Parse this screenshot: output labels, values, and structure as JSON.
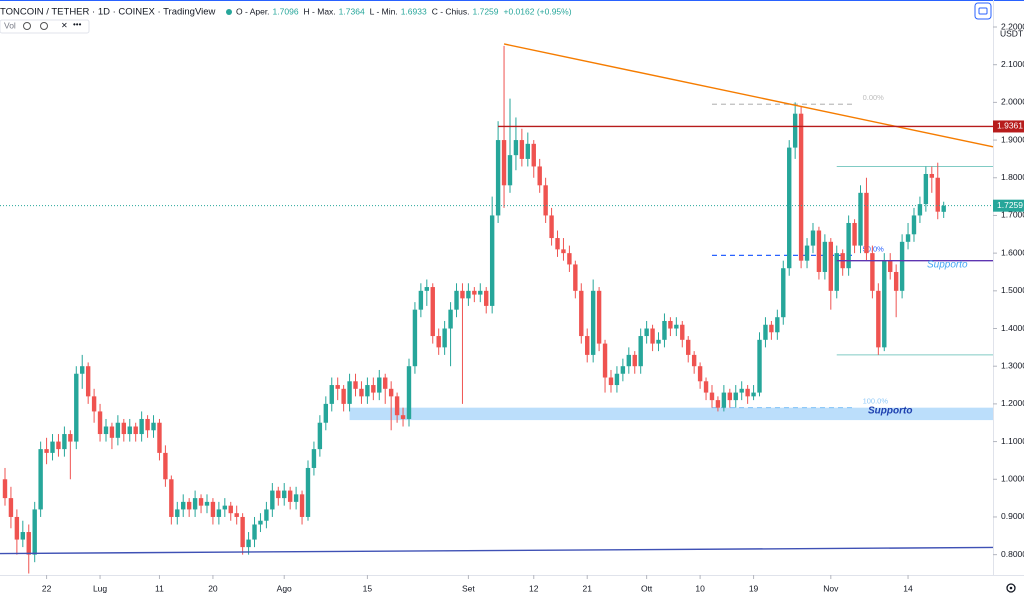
{
  "header": {
    "title": "TONCOIN / TETHER · 1D · COINEX · TradingView",
    "legend": [
      {
        "label": "O - Aper.",
        "value": "1.7096"
      },
      {
        "label": "H - Max.",
        "value": "1.7364"
      },
      {
        "label": "L - Min.",
        "value": "1.6933"
      },
      {
        "label": "C - Chius.",
        "value": "1.7259"
      }
    ],
    "change": "+0.0162 (+0.95%)",
    "volume": "Vol",
    "currency": "USDT"
  },
  "chart_data": {
    "type": "candlestick",
    "up_color": "#26a69a",
    "down_color": "#ef5350",
    "ylim": [
      0.746,
      2.2
    ],
    "xlim": [
      -0.84,
      166.3
    ],
    "yticks": [
      {
        "value": 2.2,
        "label": "2.2000"
      },
      {
        "value": 2.1,
        "label": "2.1000"
      },
      {
        "value": 2.0,
        "label": "2.0000"
      },
      {
        "value": 1.9,
        "label": "1.9000"
      },
      {
        "value": 1.8,
        "label": "1.8000"
      },
      {
        "value": 1.7,
        "label": "1.7000"
      },
      {
        "value": 1.6,
        "label": "1.6000"
      },
      {
        "value": 1.5,
        "label": "1.5000"
      },
      {
        "value": 1.4,
        "label": "1.4000"
      },
      {
        "value": 1.3,
        "label": "1.3000"
      },
      {
        "value": 1.2,
        "label": "1.2000"
      },
      {
        "value": 1.1,
        "label": "1.1000"
      },
      {
        "value": 1.0,
        "label": "1.0000"
      },
      {
        "value": 0.9,
        "label": "0.9000"
      },
      {
        "value": 0.8,
        "label": "0.8000"
      }
    ],
    "xticks": [
      {
        "value": 7,
        "label": "22"
      },
      {
        "value": 16,
        "label": "Lug"
      },
      {
        "value": 26,
        "label": "11"
      },
      {
        "value": 35,
        "label": "20"
      },
      {
        "value": 47,
        "label": "Ago"
      },
      {
        "value": 61,
        "label": "15"
      },
      {
        "value": 78,
        "label": "Set"
      },
      {
        "value": 89,
        "label": "12"
      },
      {
        "value": 98,
        "label": "21"
      },
      {
        "value": 108,
        "label": "Ott"
      },
      {
        "value": 117,
        "label": "10"
      },
      {
        "value": 126,
        "label": "19"
      },
      {
        "value": 139,
        "label": "Nov"
      },
      {
        "value": 152,
        "label": "14"
      }
    ],
    "candles": [
      [
        1.0,
        1.03,
        0.93,
        0.95
      ],
      [
        0.95,
        0.98,
        0.87,
        0.9
      ],
      [
        0.9,
        0.92,
        0.8,
        0.84
      ],
      [
        0.84,
        0.89,
        0.82,
        0.86
      ],
      [
        0.86,
        0.88,
        0.75,
        0.8
      ],
      [
        0.8,
        0.94,
        0.78,
        0.92
      ],
      [
        0.92,
        1.1,
        0.9,
        1.08
      ],
      [
        1.08,
        1.11,
        1.04,
        1.07
      ],
      [
        1.07,
        1.12,
        1.05,
        1.1
      ],
      [
        1.1,
        1.12,
        1.06,
        1.08
      ],
      [
        1.08,
        1.14,
        1.06,
        1.12
      ],
      [
        1.12,
        1.13,
        1.0,
        1.1
      ],
      [
        1.1,
        1.3,
        1.08,
        1.28
      ],
      [
        1.28,
        1.33,
        1.24,
        1.3
      ],
      [
        1.3,
        1.31,
        1.2,
        1.22
      ],
      [
        1.22,
        1.24,
        1.15,
        1.18
      ],
      [
        1.18,
        1.2,
        1.1,
        1.12
      ],
      [
        1.12,
        1.16,
        1.1,
        1.14
      ],
      [
        1.14,
        1.15,
        1.08,
        1.11
      ],
      [
        1.11,
        1.17,
        1.09,
        1.15
      ],
      [
        1.15,
        1.16,
        1.1,
        1.12
      ],
      [
        1.12,
        1.16,
        1.1,
        1.14
      ],
      [
        1.14,
        1.15,
        1.1,
        1.12
      ],
      [
        1.12,
        1.18,
        1.1,
        1.16
      ],
      [
        1.16,
        1.17,
        1.11,
        1.13
      ],
      [
        1.13,
        1.17,
        1.11,
        1.15
      ],
      [
        1.15,
        1.16,
        1.05,
        1.07
      ],
      [
        1.07,
        1.09,
        0.98,
        1.0
      ],
      [
        1.0,
        1.01,
        0.88,
        0.9
      ],
      [
        0.9,
        0.94,
        0.88,
        0.92
      ],
      [
        0.92,
        0.96,
        0.9,
        0.94
      ],
      [
        0.94,
        0.95,
        0.9,
        0.92
      ],
      [
        0.92,
        0.97,
        0.9,
        0.95
      ],
      [
        0.95,
        0.96,
        0.91,
        0.93
      ],
      [
        0.93,
        0.96,
        0.91,
        0.94
      ],
      [
        0.94,
        0.95,
        0.88,
        0.9
      ],
      [
        0.9,
        0.94,
        0.88,
        0.92
      ],
      [
        0.92,
        0.95,
        0.9,
        0.93
      ],
      [
        0.93,
        0.94,
        0.89,
        0.91
      ],
      [
        0.91,
        0.93,
        0.88,
        0.9
      ],
      [
        0.9,
        0.91,
        0.8,
        0.82
      ],
      [
        0.82,
        0.86,
        0.8,
        0.84
      ],
      [
        0.84,
        0.9,
        0.82,
        0.88
      ],
      [
        0.88,
        0.91,
        0.86,
        0.89
      ],
      [
        0.89,
        0.94,
        0.87,
        0.92
      ],
      [
        0.92,
        0.99,
        0.9,
        0.97
      ],
      [
        0.97,
        0.98,
        0.93,
        0.95
      ],
      [
        0.95,
        0.99,
        0.93,
        0.97
      ],
      [
        0.97,
        0.98,
        0.92,
        0.94
      ],
      [
        0.94,
        0.98,
        0.92,
        0.96
      ],
      [
        0.96,
        0.97,
        0.88,
        0.9
      ],
      [
        0.9,
        1.05,
        0.89,
        1.03
      ],
      [
        1.03,
        1.1,
        1.01,
        1.08
      ],
      [
        1.08,
        1.17,
        1.06,
        1.15
      ],
      [
        1.15,
        1.22,
        1.13,
        1.2
      ],
      [
        1.2,
        1.27,
        1.18,
        1.25
      ],
      [
        1.25,
        1.27,
        1.21,
        1.24
      ],
      [
        1.24,
        1.25,
        1.18,
        1.2
      ],
      [
        1.2,
        1.28,
        1.18,
        1.26
      ],
      [
        1.26,
        1.28,
        1.22,
        1.24
      ],
      [
        1.24,
        1.26,
        1.2,
        1.22
      ],
      [
        1.22,
        1.27,
        1.2,
        1.25
      ],
      [
        1.25,
        1.27,
        1.21,
        1.23
      ],
      [
        1.23,
        1.29,
        1.21,
        1.27
      ],
      [
        1.27,
        1.28,
        1.2,
        1.24
      ],
      [
        1.24,
        1.26,
        1.13,
        1.22
      ],
      [
        1.22,
        1.23,
        1.15,
        1.17
      ],
      [
        1.17,
        1.19,
        1.14,
        1.16
      ],
      [
        1.16,
        1.32,
        1.14,
        1.3
      ],
      [
        1.3,
        1.47,
        1.28,
        1.45
      ],
      [
        1.45,
        1.52,
        1.43,
        1.5
      ],
      [
        1.5,
        1.53,
        1.46,
        1.51
      ],
      [
        1.51,
        1.52,
        1.36,
        1.38
      ],
      [
        1.38,
        1.4,
        1.33,
        1.35
      ],
      [
        1.35,
        1.42,
        1.33,
        1.4
      ],
      [
        1.4,
        1.47,
        1.3,
        1.45
      ],
      [
        1.45,
        1.52,
        1.43,
        1.5
      ],
      [
        1.5,
        1.52,
        1.2,
        1.48
      ],
      [
        1.48,
        1.52,
        1.46,
        1.5
      ],
      [
        1.5,
        1.51,
        1.47,
        1.49
      ],
      [
        1.49,
        1.52,
        1.47,
        1.5
      ],
      [
        1.5,
        1.51,
        1.44,
        1.46
      ],
      [
        1.46,
        1.75,
        1.44,
        1.7
      ],
      [
        1.7,
        1.95,
        1.68,
        1.9
      ],
      [
        1.9,
        2.15,
        1.72,
        1.78
      ],
      [
        1.78,
        2.01,
        1.76,
        1.86
      ],
      [
        1.86,
        1.96,
        1.82,
        1.9
      ],
      [
        1.9,
        1.93,
        1.83,
        1.85
      ],
      [
        1.85,
        1.92,
        1.83,
        1.89
      ],
      [
        1.89,
        1.9,
        1.8,
        1.83
      ],
      [
        1.83,
        1.85,
        1.76,
        1.78
      ],
      [
        1.78,
        1.8,
        1.68,
        1.7
      ],
      [
        1.7,
        1.72,
        1.62,
        1.64
      ],
      [
        1.64,
        1.66,
        1.59,
        1.61
      ],
      [
        1.61,
        1.64,
        1.58,
        1.6
      ],
      [
        1.6,
        1.62,
        1.55,
        1.57
      ],
      [
        1.57,
        1.58,
        1.48,
        1.5
      ],
      [
        1.5,
        1.52,
        1.36,
        1.38
      ],
      [
        1.38,
        1.4,
        1.31,
        1.33
      ],
      [
        1.33,
        1.53,
        1.31,
        1.5
      ],
      [
        1.5,
        1.51,
        1.34,
        1.36
      ],
      [
        1.36,
        1.37,
        1.23,
        1.27
      ],
      [
        1.27,
        1.29,
        1.23,
        1.25
      ],
      [
        1.25,
        1.3,
        1.23,
        1.28
      ],
      [
        1.28,
        1.32,
        1.26,
        1.3
      ],
      [
        1.3,
        1.35,
        1.28,
        1.33
      ],
      [
        1.33,
        1.34,
        1.28,
        1.3
      ],
      [
        1.3,
        1.4,
        1.28,
        1.38
      ],
      [
        1.38,
        1.42,
        1.36,
        1.4
      ],
      [
        1.4,
        1.41,
        1.34,
        1.36
      ],
      [
        1.36,
        1.39,
        1.34,
        1.37
      ],
      [
        1.37,
        1.44,
        1.35,
        1.42
      ],
      [
        1.42,
        1.43,
        1.38,
        1.4
      ],
      [
        1.4,
        1.43,
        1.38,
        1.41
      ],
      [
        1.41,
        1.42,
        1.35,
        1.37
      ],
      [
        1.37,
        1.38,
        1.31,
        1.33
      ],
      [
        1.33,
        1.34,
        1.28,
        1.3
      ],
      [
        1.3,
        1.31,
        1.24,
        1.26
      ],
      [
        1.26,
        1.27,
        1.21,
        1.23
      ],
      [
        1.23,
        1.25,
        1.19,
        1.21
      ],
      [
        1.21,
        1.22,
        1.18,
        1.19
      ],
      [
        1.19,
        1.25,
        1.18,
        1.23
      ],
      [
        1.23,
        1.24,
        1.19,
        1.21
      ],
      [
        1.21,
        1.25,
        1.19,
        1.23
      ],
      [
        1.23,
        1.26,
        1.21,
        1.24
      ],
      [
        1.24,
        1.25,
        1.2,
        1.22
      ],
      [
        1.22,
        1.25,
        1.21,
        1.23
      ],
      [
        1.23,
        1.39,
        1.22,
        1.37
      ],
      [
        1.37,
        1.43,
        1.35,
        1.41
      ],
      [
        1.41,
        1.42,
        1.37,
        1.39
      ],
      [
        1.39,
        1.45,
        1.37,
        1.43
      ],
      [
        1.43,
        1.58,
        1.41,
        1.56
      ],
      [
        1.56,
        1.9,
        1.54,
        1.88
      ],
      [
        1.88,
        2.0,
        1.85,
        1.97
      ],
      [
        1.97,
        1.99,
        1.56,
        1.58
      ],
      [
        1.58,
        1.64,
        1.56,
        1.62
      ],
      [
        1.62,
        1.68,
        1.6,
        1.66
      ],
      [
        1.66,
        1.67,
        1.53,
        1.55
      ],
      [
        1.55,
        1.65,
        1.53,
        1.63
      ],
      [
        1.63,
        1.64,
        1.45,
        1.5
      ],
      [
        1.5,
        1.62,
        1.48,
        1.6
      ],
      [
        1.6,
        1.61,
        1.54,
        1.56
      ],
      [
        1.56,
        1.7,
        1.54,
        1.68
      ],
      [
        1.68,
        1.69,
        1.6,
        1.62
      ],
      [
        1.62,
        1.78,
        1.6,
        1.76
      ],
      [
        1.76,
        1.8,
        1.58,
        1.6
      ],
      [
        1.6,
        1.62,
        1.48,
        1.5
      ],
      [
        1.5,
        1.52,
        1.33,
        1.35
      ],
      [
        1.35,
        1.6,
        1.34,
        1.58
      ],
      [
        1.58,
        1.6,
        1.53,
        1.55
      ],
      [
        1.55,
        1.57,
        1.43,
        1.5
      ],
      [
        1.5,
        1.65,
        1.48,
        1.63
      ],
      [
        1.63,
        1.68,
        1.61,
        1.65
      ],
      [
        1.65,
        1.72,
        1.63,
        1.7
      ],
      [
        1.7,
        1.75,
        1.68,
        1.73
      ],
      [
        1.73,
        1.83,
        1.71,
        1.81
      ],
      [
        1.81,
        1.83,
        1.76,
        1.8
      ],
      [
        1.8,
        1.84,
        1.69,
        1.71
      ],
      [
        1.7096,
        1.7364,
        1.6933,
        1.7259
      ]
    ],
    "levels": [
      {
        "value": 1.9361,
        "label": "1.9361",
        "color": "#b71c1c",
        "from": 83
      }
    ],
    "last_price": {
      "value": 1.7259,
      "label": "1.7259",
      "color": "#26a69a"
    },
    "trendlines": [
      {
        "x": [
          84,
          166.3
        ],
        "y": [
          2.155,
          1.882
        ],
        "color": "#f57c00"
      },
      {
        "x": [
          -0.84,
          166.3
        ],
        "y": [
          0.803,
          0.819
        ],
        "color": "#3f51b5"
      }
    ],
    "range_lines": [
      {
        "value": 1.83,
        "from": 140,
        "color": "#80cbc4"
      },
      {
        "value": 1.33,
        "from": 140,
        "color": "#80cbc4"
      }
    ],
    "fib": {
      "from": 119,
      "to": 143,
      "levels": [
        {
          "value": 1.995,
          "label": "0.00%",
          "color": "#bdbdbd"
        },
        {
          "value": 1.594,
          "label": "50.0%",
          "color": "#2962ff"
        },
        {
          "value": 1.19,
          "label": "100.0%",
          "color": "#90caf9"
        }
      ]
    },
    "support_zone": {
      "from": 58,
      "low": 1.157,
      "high": 1.19,
      "label": "Supporto",
      "color": "#bbdefb"
    },
    "support_line": {
      "value": 1.58,
      "from": 140,
      "label": "Supporto",
      "color": "#5e35b1"
    }
  }
}
